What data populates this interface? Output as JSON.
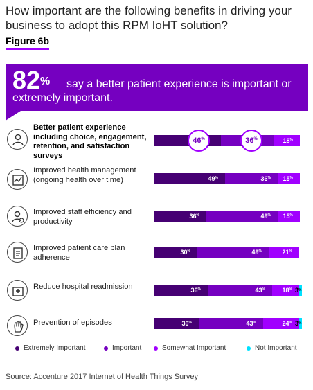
{
  "question": "How important are the following benefits in driving your business to adopt this RPM IoHT solution?",
  "figure_label": "Figure 6b",
  "banner": {
    "big_number": "82",
    "big_unit": "%",
    "text": "say a better patient experience is important or extremely important."
  },
  "percent_suffix": "%",
  "colors": {
    "extremely": "#460073",
    "important": "#7500c0",
    "somewhat": "#a100ff",
    "not": "#00e1ff",
    "banner": "#7500c0"
  },
  "chart_data": {
    "type": "bar",
    "orientation": "horizontal-stacked",
    "categories": [
      "Better patient experience including choice, engagement, retention, and satisfaction surveys",
      "Improved health management (ongoing health over time)",
      "Improved staff efficiency and productivity",
      "Improved patient care plan adherence",
      "Reduce hospital readmission",
      "Prevention of episodes"
    ],
    "icons": [
      "patient-icon",
      "health-chart-icon",
      "staff-icon",
      "care-plan-icon",
      "hospital-icon",
      "hand-stop-icon"
    ],
    "series": [
      {
        "name": "Extremely Important",
        "values": [
          46,
          49,
          36,
          30,
          36,
          30
        ]
      },
      {
        "name": "Important",
        "values": [
          36,
          36,
          49,
          49,
          43,
          43
        ]
      },
      {
        "name": "Somewhat Important",
        "values": [
          18,
          15,
          15,
          21,
          18,
          24
        ]
      },
      {
        "name": "Not Important",
        "values": [
          0,
          0,
          0,
          0,
          3,
          3
        ]
      }
    ],
    "highlighted_row": 0,
    "legend_position": "bottom",
    "grid": false
  },
  "source": "Source: Accenture 2017 Internet of Health Things Survey"
}
